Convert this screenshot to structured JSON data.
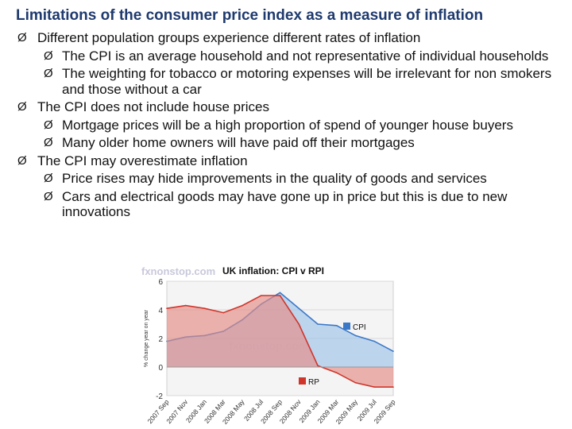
{
  "slide": {
    "title": "Limitations of the consumer price index as a measure of inflation",
    "bullets": [
      {
        "level": 1,
        "text": "Different population groups experience different rates of inflation"
      },
      {
        "level": 2,
        "text": "The CPI is an average household and not representative of individual households"
      },
      {
        "level": 2,
        "text": "The weighting for tobacco or motoring expenses will be irrelevant for non smokers and those without a car"
      },
      {
        "level": 1,
        "text": "The CPI does not include house prices"
      },
      {
        "level": 2,
        "text": "Mortgage prices will be a high proportion of spend of younger house buyers"
      },
      {
        "level": 2,
        "text": "Many older home owners will have paid off their mortgages"
      },
      {
        "level": 1,
        "text": "The CPI may overestimate inflation"
      },
      {
        "level": 2,
        "text": "Price rises may hide improvements in the quality of goods and services"
      },
      {
        "level": 2,
        "text": "Cars and electrical goods may have gone up in price but this is due to new innovations"
      }
    ],
    "bullet_glyph": "Ø"
  },
  "chart_data": {
    "type": "area",
    "title": "UK inflation: CPI v RPI",
    "watermark": "fxnonstop.com",
    "ylabel": "% change year on year",
    "ylim": [
      -2,
      6
    ],
    "yticks": [
      "6",
      "4",
      "2",
      "0",
      "-2"
    ],
    "categories": [
      "2007 Sep",
      "2007 Nov",
      "2008 Jan",
      "2008 Mar",
      "2008 May",
      "2008 Jul",
      "2008 Sep",
      "2008 Nov",
      "2009 Jan",
      "2009 Mar",
      "2009 May",
      "2009 Jul",
      "2009 Sep"
    ],
    "series": [
      {
        "name": "CPI",
        "color": "#9fc3ea",
        "values": [
          1.8,
          2.1,
          2.2,
          2.5,
          3.3,
          4.4,
          5.2,
          4.1,
          3.0,
          2.9,
          2.2,
          1.8,
          1.1
        ]
      },
      {
        "name": "RP",
        "color": "#e58c86",
        "values": [
          4.1,
          4.3,
          4.1,
          3.8,
          4.3,
          5.0,
          5.0,
          3.0,
          0.1,
          -0.4,
          -1.1,
          -1.4,
          -1.4
        ]
      }
    ],
    "legend": [
      "CPI",
      "RP"
    ]
  }
}
